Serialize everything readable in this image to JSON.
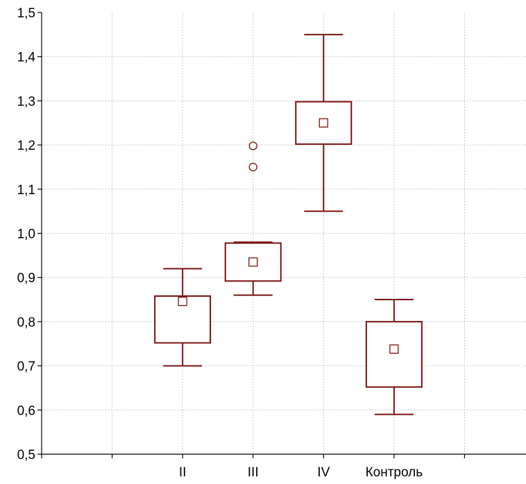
{
  "chart_data": {
    "type": "boxplot",
    "title": "",
    "xlabel": "",
    "ylabel": "",
    "ylim": [
      0.5,
      1.5
    ],
    "yticks": [
      0.5,
      0.6,
      0.7,
      0.8,
      0.9,
      1.0,
      1.1,
      1.2,
      1.3,
      1.4,
      1.5
    ],
    "ytick_labels": [
      "0,5",
      "0,6",
      "0,7",
      "0,8",
      "0,9",
      "1,0",
      "1,1",
      "1,2",
      "1,3",
      "1,4",
      "1,5"
    ],
    "grid": true,
    "x_slots": 7,
    "color": "#7a1010",
    "categories": [
      "II",
      "III",
      "IV",
      "Контроль"
    ],
    "category_slots": [
      2,
      3,
      4,
      5
    ],
    "boxes": [
      {
        "category": "II",
        "whisker_low": 0.7,
        "q1": 0.752,
        "q3": 0.858,
        "whisker_high": 0.92,
        "mean": 0.846,
        "outliers": []
      },
      {
        "category": "III",
        "whisker_low": 0.86,
        "q1": 0.892,
        "q3": 0.978,
        "whisker_high": 0.98,
        "mean": 0.935,
        "outliers": [
          1.15,
          1.198
        ]
      },
      {
        "category": "IV",
        "whisker_low": 1.05,
        "q1": 1.202,
        "q3": 1.298,
        "whisker_high": 1.45,
        "mean": 1.25,
        "outliers": []
      },
      {
        "category": "Контроль",
        "whisker_low": 0.59,
        "q1": 0.652,
        "q3": 0.8,
        "whisker_high": 0.85,
        "mean": 0.738,
        "outliers": []
      }
    ]
  }
}
